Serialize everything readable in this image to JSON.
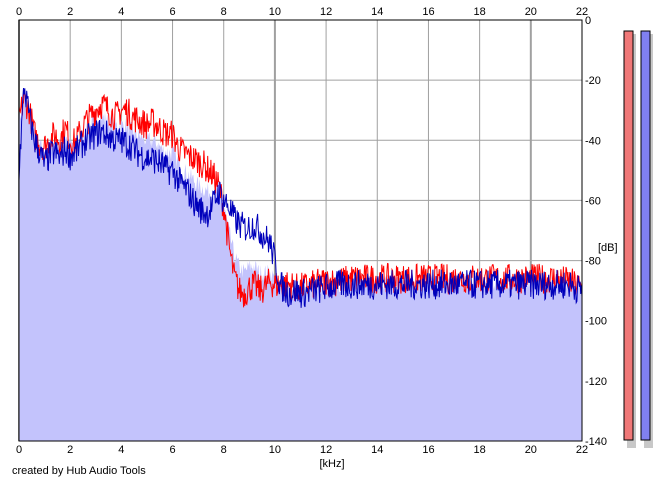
{
  "chart_data": {
    "type": "area",
    "xlabel": "[kHz]",
    "ylabel": "[dB]",
    "xlim": [
      0,
      22
    ],
    "ylim": [
      -140,
      0
    ],
    "x_ticks": [
      0,
      2,
      4,
      6,
      8,
      10,
      12,
      14,
      16,
      18,
      20,
      22
    ],
    "y_ticks": [
      0,
      -20,
      -40,
      -60,
      -80,
      -100,
      -120,
      -140
    ],
    "grid": true,
    "x": [
      0,
      0.2,
      0.4,
      0.6,
      0.8,
      1,
      1.2,
      1.4,
      1.6,
      1.8,
      2,
      2.2,
      2.4,
      2.6,
      2.8,
      3,
      3.2,
      3.4,
      3.6,
      3.8,
      4,
      4.2,
      4.4,
      4.6,
      4.8,
      5,
      5.2,
      5.4,
      5.6,
      5.8,
      6,
      6.2,
      6.4,
      6.6,
      6.8,
      7,
      7.2,
      7.4,
      7.6,
      7.8,
      8,
      8.2,
      8.4,
      8.6,
      8.8,
      9,
      9.2,
      9.4,
      9.6,
      9.8,
      10,
      10.2,
      10.4,
      10.6,
      10.8,
      11,
      11.5,
      12,
      12.5,
      13,
      13.5,
      14,
      14.5,
      15,
      15.5,
      16,
      16.5,
      17,
      17.5,
      18,
      18.5,
      19,
      19.5,
      20,
      20.5,
      21,
      21.5,
      22
    ],
    "series": [
      {
        "color": "#ff0000",
        "values": [
          -33,
          -26,
          -30,
          -38,
          -41,
          -42,
          -40,
          -38,
          -40,
          -36,
          -40,
          -41,
          -37,
          -34,
          -32,
          -30,
          -28,
          -29,
          -31,
          -32,
          -30,
          -30,
          -32,
          -33,
          -34,
          -35,
          -34,
          -35,
          -37,
          -38,
          -38,
          -42,
          -44,
          -45,
          -46,
          -47,
          -48,
          -50,
          -52,
          -55,
          -62,
          -75,
          -85,
          -90,
          -91,
          -89,
          -88,
          -90,
          -89,
          -87,
          -88,
          -88,
          -88,
          -88,
          -89,
          -89,
          -88,
          -87,
          -87,
          -86,
          -86,
          -86,
          -86,
          -86,
          -86,
          -86,
          -86,
          -86,
          -86,
          -86,
          -86,
          -86,
          -86,
          -86,
          -86,
          -86,
          -87,
          -89
        ]
      },
      {
        "color": "#0000bb",
        "values": [
          -50,
          -22,
          -32,
          -40,
          -44,
          -48,
          -45,
          -44,
          -46,
          -43,
          -45,
          -44,
          -42,
          -40,
          -39,
          -38,
          -37,
          -38,
          -39,
          -40,
          -40,
          -41,
          -42,
          -44,
          -45,
          -46,
          -46,
          -47,
          -48,
          -50,
          -50,
          -53,
          -55,
          -57,
          -60,
          -62,
          -64,
          -64,
          -61,
          -57,
          -60,
          -62,
          -66,
          -68,
          -69,
          -69,
          -68,
          -70,
          -72,
          -74,
          -80,
          -88,
          -90,
          -91,
          -90,
          -91,
          -90,
          -89,
          -88,
          -88,
          -88,
          -88,
          -88,
          -88,
          -88,
          -88,
          -88,
          -88,
          -88,
          -88,
          -88,
          -88,
          -88,
          -88,
          -88,
          -88,
          -88,
          -90
        ]
      }
    ],
    "area": {
      "color": "#c3c3fc",
      "values": [
        -35,
        -24,
        -32,
        -38,
        -42,
        -44,
        -42,
        -41,
        -42,
        -39,
        -41,
        -41,
        -39,
        -37,
        -35,
        -33,
        -32,
        -33,
        -34,
        -35,
        -35,
        -35,
        -37,
        -38,
        -39,
        -40,
        -40,
        -41,
        -43,
        -44,
        -44,
        -47,
        -50,
        -51,
        -53,
        -55,
        -56,
        -57,
        -57,
        -56,
        -62,
        -70,
        -78,
        -82,
        -84,
        -82,
        -82,
        -84,
        -84,
        -84,
        -86,
        -89,
        -89,
        -90,
        -90,
        -90,
        -89,
        -88,
        -88,
        -87,
        -87,
        -87,
        -87,
        -87,
        -87,
        -87,
        -87,
        -87,
        -87,
        -87,
        -87,
        -87,
        -87,
        -87,
        -87,
        -87,
        -88,
        -90
      ]
    },
    "level_meters": [
      {
        "color": "#f07878",
        "level": 0.0
      },
      {
        "color": "#8080f0",
        "level": 0.0
      }
    ]
  },
  "footer": {
    "credit": "created by Hub Audio Tools"
  }
}
